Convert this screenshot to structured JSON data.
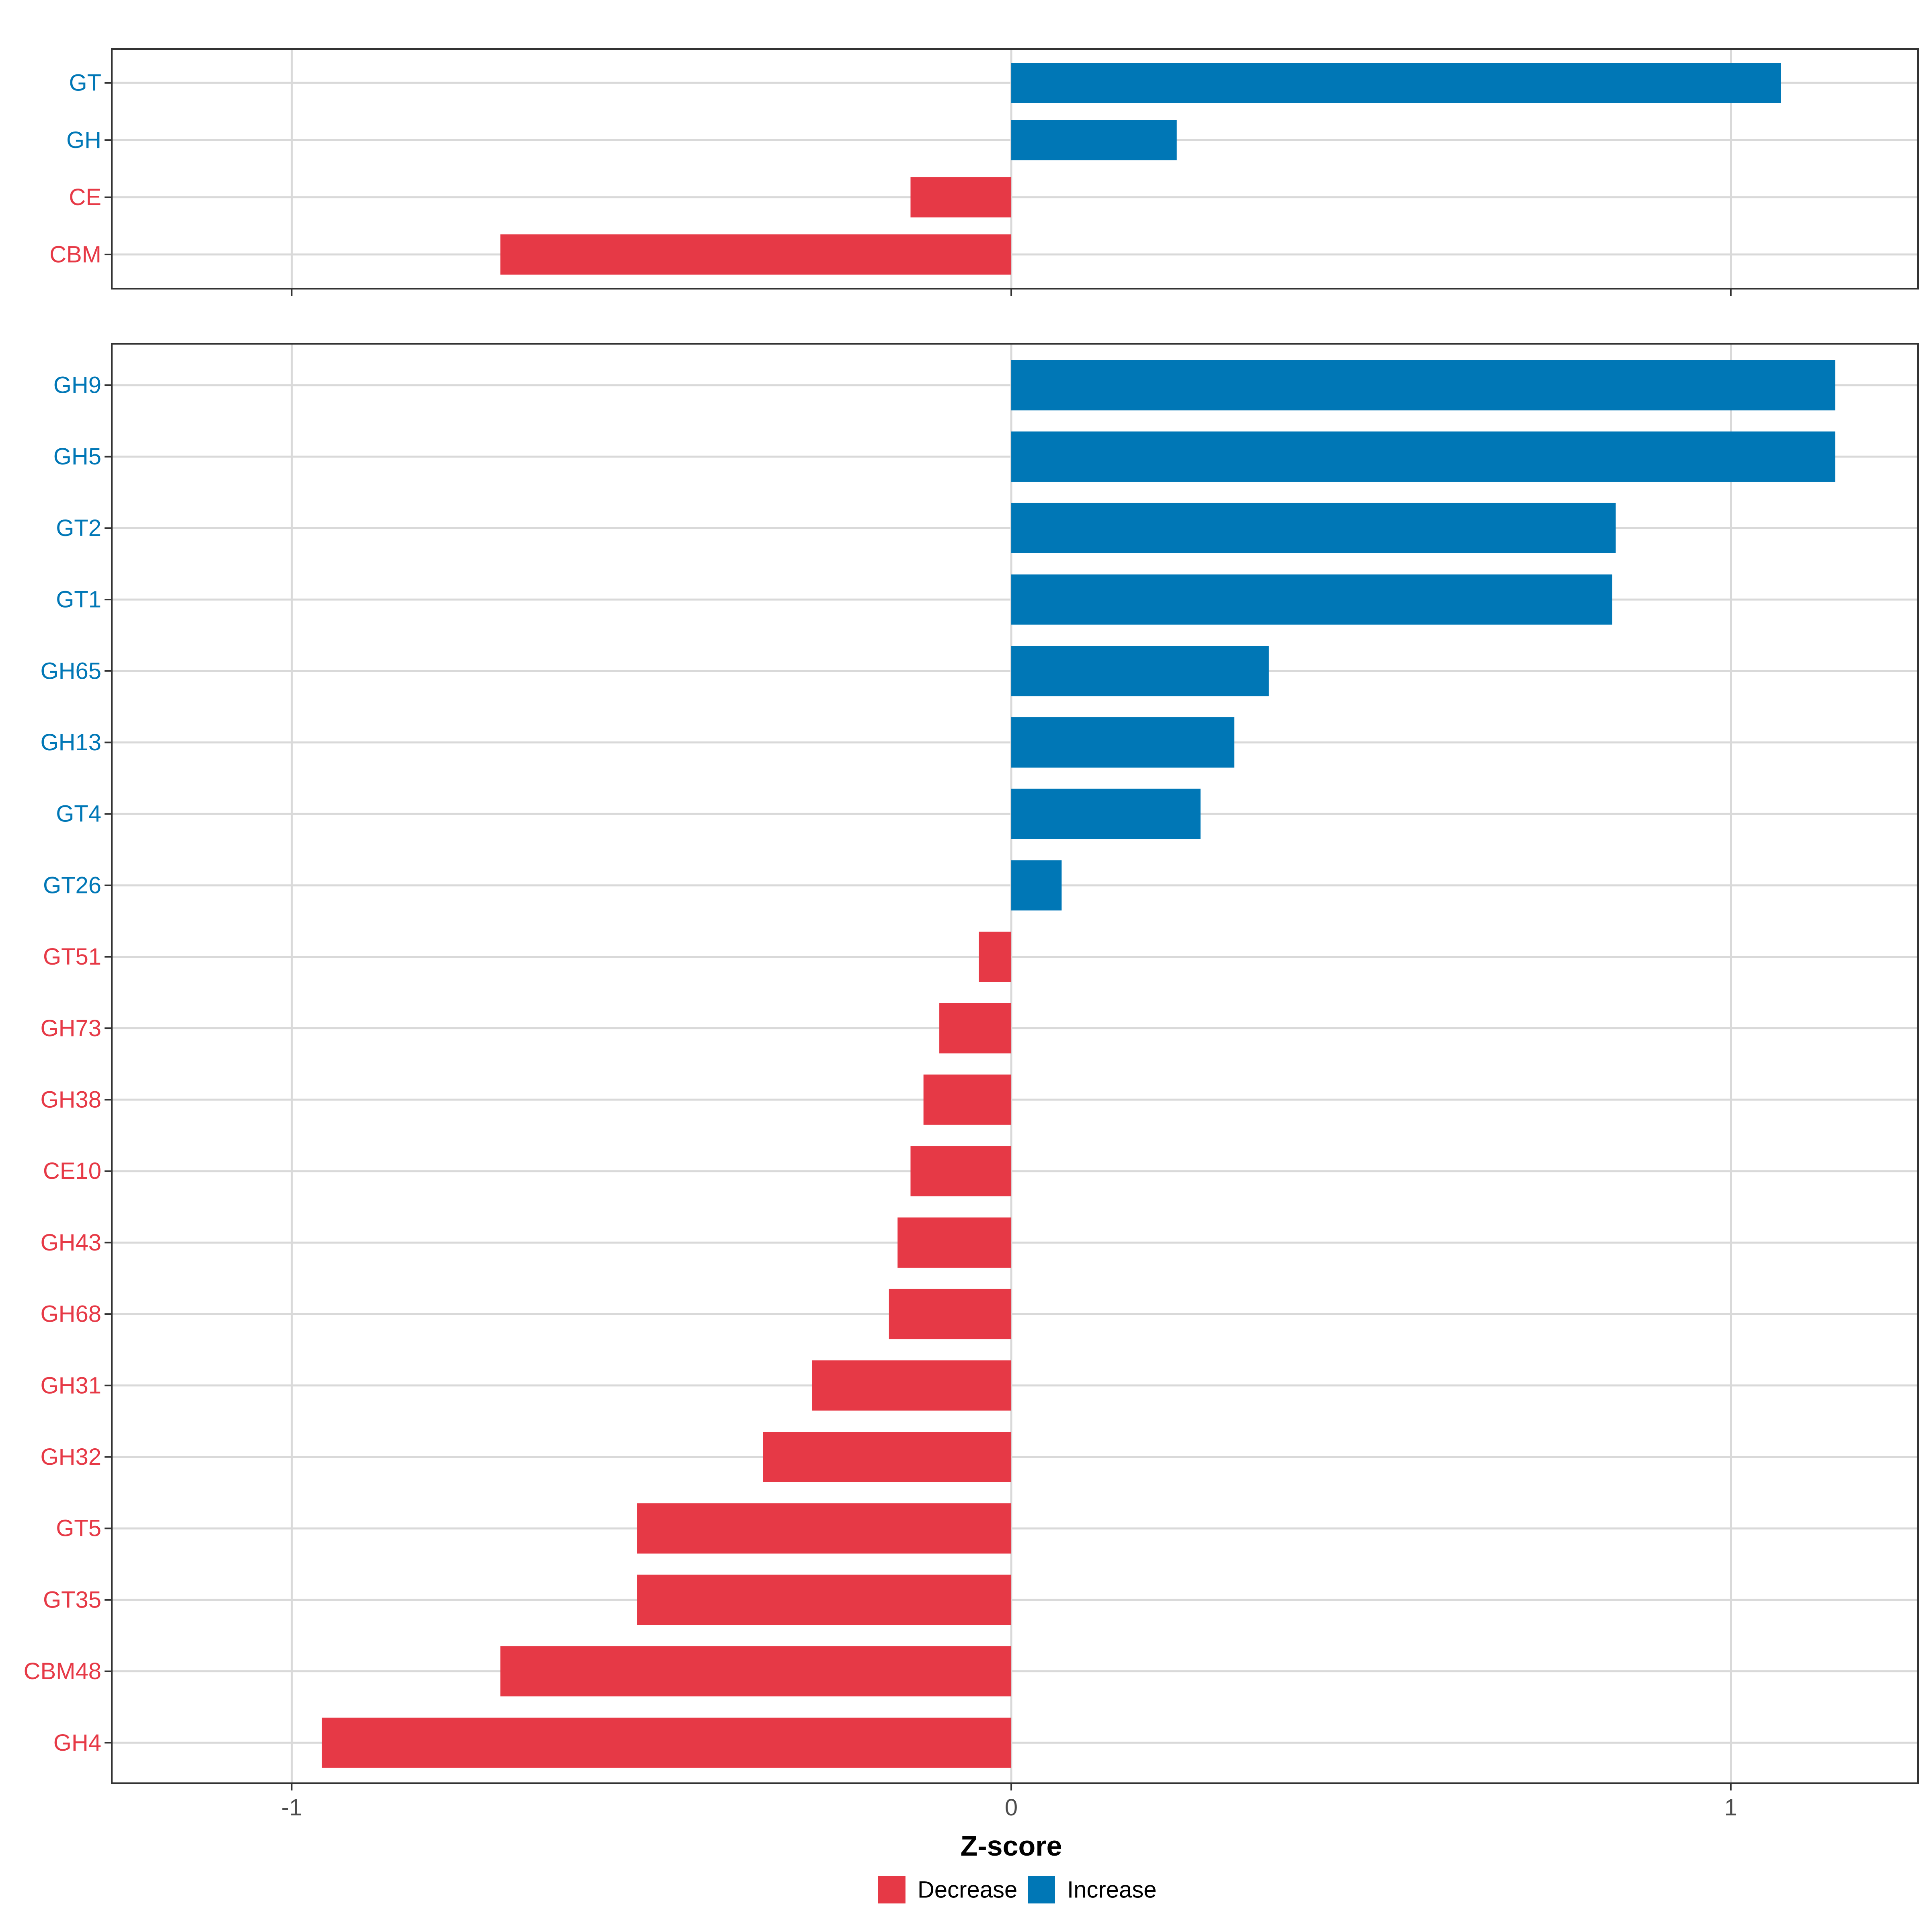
{
  "chart_data": [
    {
      "type": "bar",
      "orientation": "horizontal",
      "panel": "top",
      "categories": [
        "GT",
        "GH",
        "CE",
        "CBM"
      ],
      "values": [
        1.07,
        0.23,
        -0.14,
        -0.71
      ],
      "groups": [
        "Increase",
        "Increase",
        "Decrease",
        "Decrease"
      ],
      "xlim": [
        -1.25,
        1.26
      ],
      "xticks": [
        -1,
        0,
        1
      ],
      "grid": true
    },
    {
      "type": "bar",
      "orientation": "horizontal",
      "panel": "bottom",
      "categories": [
        "GH9",
        "GH5",
        "GT2",
        "GT1",
        "GH65",
        "GH13",
        "GT4",
        "GT26",
        "GT51",
        "GH73",
        "GH38",
        "CE10",
        "GH43",
        "GH68",
        "GH31",
        "GH32",
        "GT5",
        "GT35",
        "CBM48",
        "GH4"
      ],
      "values": [
        1.145,
        1.145,
        0.84,
        0.835,
        0.358,
        0.31,
        0.263,
        0.07,
        -0.045,
        -0.1,
        -0.122,
        -0.14,
        -0.158,
        -0.17,
        -0.277,
        -0.345,
        -0.52,
        -0.52,
        -0.71,
        -0.958
      ],
      "groups": [
        "Increase",
        "Increase",
        "Increase",
        "Increase",
        "Increase",
        "Increase",
        "Increase",
        "Increase",
        "Decrease",
        "Decrease",
        "Decrease",
        "Decrease",
        "Decrease",
        "Decrease",
        "Decrease",
        "Decrease",
        "Decrease",
        "Decrease",
        "Decrease",
        "Decrease"
      ],
      "xlim": [
        -1.25,
        1.26
      ],
      "xticks": [
        -1,
        0,
        1
      ],
      "xtick_labels": [
        "-1",
        "0",
        "1"
      ],
      "xlabel": "Z-score",
      "grid": true
    }
  ],
  "legend": {
    "position": "bottom",
    "items": [
      {
        "label": "Decrease",
        "color": "#E63946"
      },
      {
        "label": "Increase",
        "color": "#0077B6"
      }
    ]
  },
  "colors": {
    "Decrease": "#E63946",
    "Increase": "#0077B6",
    "grid": "#d9d9d9",
    "frame": "#333333"
  }
}
